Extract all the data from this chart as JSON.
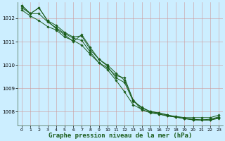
{
  "background_color": "#cceeff",
  "plot_bg_color": "#cceeff",
  "grid_color": "#cc9999",
  "line_color": "#1a5c1a",
  "marker_color": "#1a5c1a",
  "xlabel": "Graphe pression niveau de la mer (hPa)",
  "xlabel_fontsize": 6.5,
  "ylim": [
    1007.4,
    1012.7
  ],
  "xlim": [
    -0.5,
    23.5
  ],
  "yticks": [
    1008,
    1009,
    1010,
    1011,
    1012
  ],
  "xticks": [
    0,
    1,
    2,
    3,
    4,
    5,
    6,
    7,
    8,
    9,
    10,
    11,
    12,
    13,
    14,
    15,
    16,
    17,
    18,
    19,
    20,
    21,
    22,
    23
  ],
  "series": [
    [
      1012.55,
      1012.2,
      1012.45,
      1011.9,
      1011.55,
      1011.3,
      1011.0,
      1011.3,
      1010.75,
      1010.25,
      1009.95,
      1009.45,
      1009.25,
      1008.45,
      1008.2,
      1008.0,
      1007.95,
      1007.85,
      1007.8,
      1007.75,
      1007.75,
      1007.75,
      1007.75,
      1007.85
    ],
    [
      1012.55,
      1012.2,
      1012.2,
      1011.85,
      1011.6,
      1011.35,
      1011.15,
      1011.05,
      1010.55,
      1010.1,
      1009.8,
      1009.35,
      1008.85,
      1008.3,
      1008.1,
      1007.95,
      1007.9,
      1007.82,
      1007.77,
      1007.72,
      1007.68,
      1007.65,
      1007.68,
      1007.78
    ],
    [
      1012.35,
      1012.1,
      1011.9,
      1011.65,
      1011.5,
      1011.2,
      1011.05,
      1010.85,
      1010.45,
      1010.1,
      1009.88,
      1009.55,
      1009.45,
      1008.5,
      1008.15,
      1008.02,
      1007.95,
      1007.87,
      1007.77,
      1007.7,
      1007.65,
      1007.64,
      1007.64,
      1007.72
    ],
    [
      1012.45,
      1012.2,
      1012.45,
      1011.9,
      1011.7,
      1011.4,
      1011.2,
      1011.25,
      1010.65,
      1010.25,
      1010.0,
      1009.65,
      1009.35,
      1008.5,
      1008.08,
      1007.98,
      1007.9,
      1007.82,
      1007.77,
      1007.72,
      1007.66,
      1007.65,
      1007.65,
      1007.75
    ]
  ]
}
